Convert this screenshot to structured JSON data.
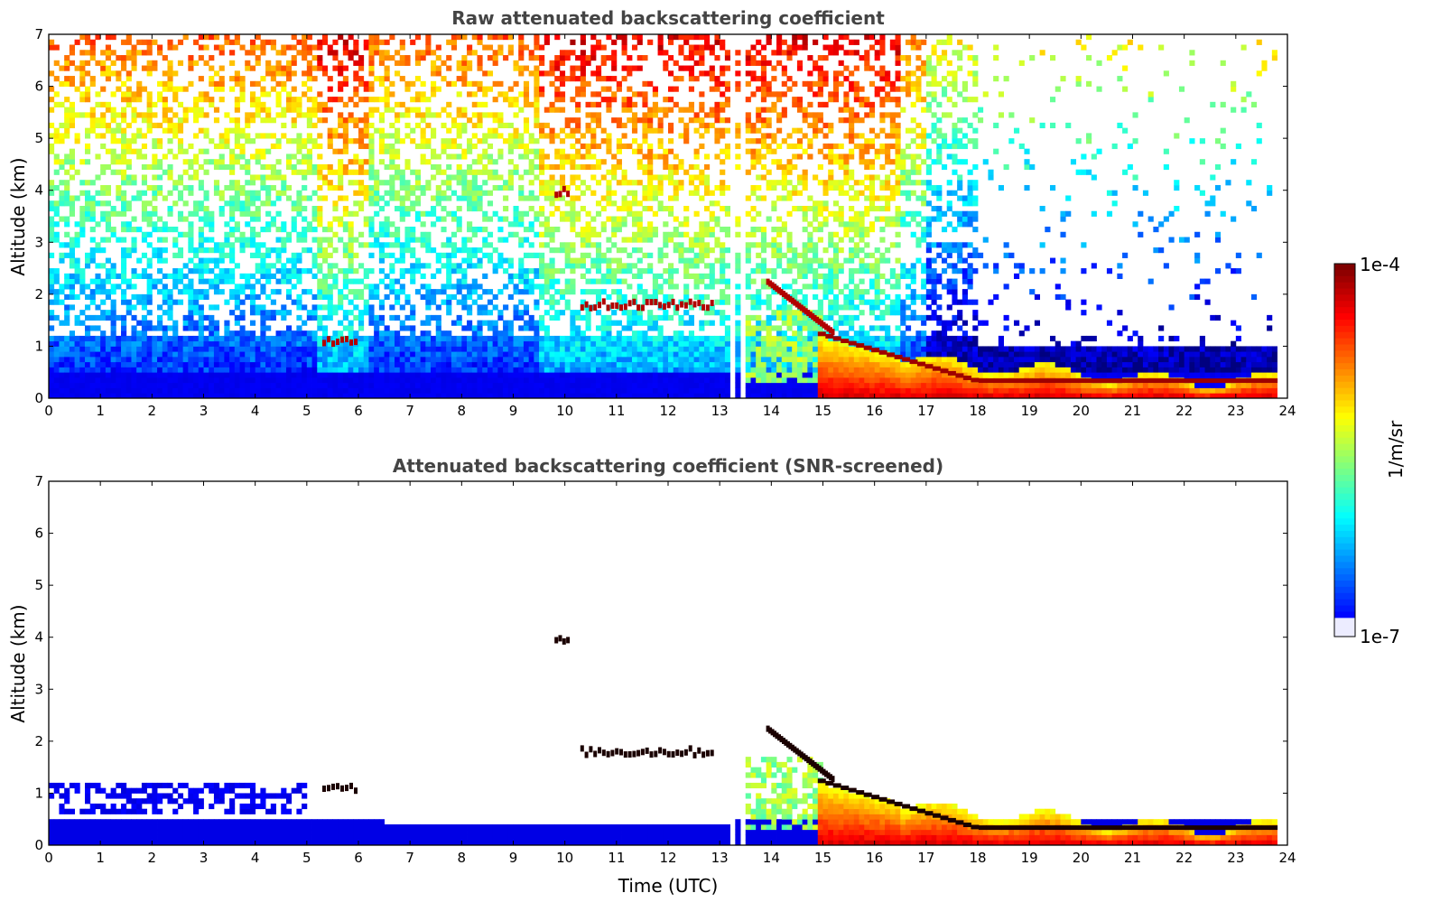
{
  "colors": {
    "jet": [
      "#00007f",
      "#0000ff",
      "#007fff",
      "#00ffff",
      "#7fff7f",
      "#ffff00",
      "#ff7f00",
      "#ff0000",
      "#7f0000"
    ],
    "low_tint": "#ececff",
    "feature_black": "#1a0000"
  },
  "chart_data": [
    {
      "type": "heatmap",
      "title": "Raw attenuated backscattering coefficient",
      "xlabel": "",
      "ylabel": "Altitude (km)",
      "xlim": [
        0,
        24
      ],
      "ylim": [
        0,
        7
      ],
      "xticks": [
        "0",
        "1",
        "2",
        "3",
        "4",
        "5",
        "6",
        "7",
        "8",
        "9",
        "10",
        "11",
        "12",
        "13",
        "14",
        "15",
        "16",
        "17",
        "18",
        "19",
        "20",
        "21",
        "22",
        "23",
        "24"
      ],
      "yticks": [
        "0",
        "1",
        "2",
        "3",
        "4",
        "5",
        "6",
        "7"
      ],
      "data_gaps_utc": [
        [
          13.25,
          13.35
        ],
        [
          13.45,
          13.55
        ]
      ],
      "data_end_utc": 23.8,
      "features": [
        {
          "kind": "aerosol_layer",
          "x": [
            5.3,
            6.0
          ],
          "altitude_km": [
            0.95,
            1.2
          ]
        },
        {
          "kind": "aerosol_layer",
          "x": [
            10.3,
            12.9
          ],
          "altitude_km": [
            1.6,
            1.95
          ]
        },
        {
          "kind": "elevated_layer",
          "x": [
            9.8,
            10.1
          ],
          "altitude_km": [
            3.8,
            4.1
          ]
        },
        {
          "kind": "descending_layer",
          "x": [
            13.9,
            15.2
          ],
          "altitude_km_start": 2.2,
          "altitude_km_end": 1.2
        },
        {
          "kind": "boundary_layer",
          "x": [
            14.9,
            23.8
          ],
          "altitude_km_start": 1.2,
          "altitude_km_end": 0.3
        }
      ]
    },
    {
      "type": "heatmap",
      "title": "Attenuated backscattering coefficient (SNR-screened)",
      "xlabel": "Time (UTC)",
      "ylabel": "Altitude (km)",
      "xlim": [
        0,
        24
      ],
      "ylim": [
        0,
        7
      ],
      "xticks": [
        "0",
        "1",
        "2",
        "3",
        "4",
        "5",
        "6",
        "7",
        "8",
        "9",
        "10",
        "11",
        "12",
        "13",
        "14",
        "15",
        "16",
        "17",
        "18",
        "19",
        "20",
        "21",
        "22",
        "23",
        "24"
      ],
      "yticks": [
        "0",
        "1",
        "2",
        "3",
        "4",
        "5",
        "6",
        "7"
      ],
      "data_gaps_utc": [
        [
          13.25,
          13.35
        ],
        [
          13.45,
          13.55
        ]
      ],
      "data_end_utc": 23.8
    }
  ],
  "colorbar": {
    "label": "1/m/sr",
    "max_label": "1e-4",
    "min_label": "1e-7",
    "range": [
      1e-07,
      0.0001
    ],
    "scale": "log"
  }
}
